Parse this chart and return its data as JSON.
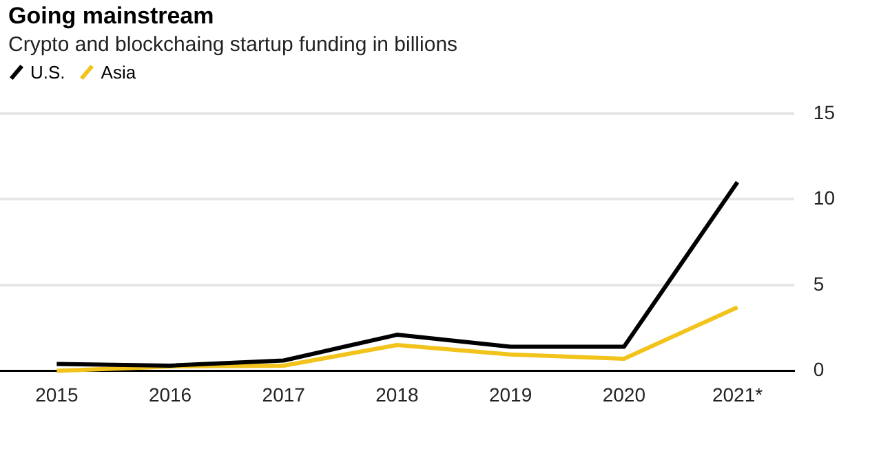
{
  "chart_data": {
    "type": "line",
    "title": "Going mainstream",
    "subtitle": "Crypto and blockchaing startup funding in billions",
    "categories": [
      "2015",
      "2016",
      "2017",
      "2018",
      "2019",
      "2020",
      "2021*"
    ],
    "series": [
      {
        "name": "U.S.",
        "color": "#000000",
        "values": [
          0.4,
          0.3,
          0.6,
          2.1,
          1.4,
          1.4,
          11.0
        ]
      },
      {
        "name": "Asia",
        "color": "#f2c31b",
        "values": [
          0,
          0.25,
          0.3,
          1.5,
          0.95,
          0.7,
          3.7
        ]
      }
    ],
    "ylim": [
      0,
      15
    ],
    "yticks": [
      0,
      5,
      10,
      15
    ],
    "grid": "y",
    "legend": "top left",
    "marker": "none"
  }
}
